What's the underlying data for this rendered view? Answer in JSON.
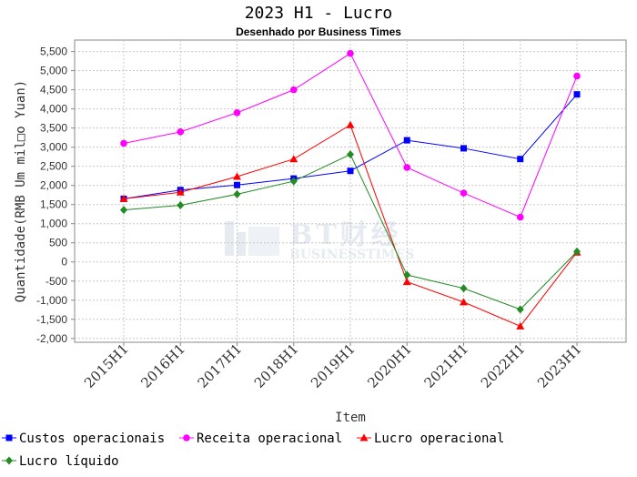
{
  "title": "2023 H1 - Lucro",
  "subtitle": "Desenhado por Business Times",
  "watermark": {
    "main": "BT财经",
    "sub": "BUSINESSTIMES"
  },
  "chart_data": {
    "type": "line",
    "xlabel": "Item",
    "ylabel": "Quantidade(RMB Um mil□o Yuan)",
    "categories": [
      "2015H1",
      "2016H1",
      "2017H1",
      "2018H1",
      "2019H1",
      "2020H1",
      "2021H1",
      "2022H1",
      "2023H1"
    ],
    "ylim": [
      -2000,
      5500
    ],
    "yticks": [
      -2000,
      -1500,
      -1000,
      -500,
      0,
      500,
      1000,
      1500,
      2000,
      2500,
      3000,
      3500,
      4000,
      4500,
      5000,
      5500
    ],
    "ytick_labels": [
      "-2,000",
      "-1,500",
      "-1,000",
      "-500",
      "0",
      "500",
      "1,000",
      "1,500",
      "2,000",
      "2,500",
      "3,000",
      "3,500",
      "4,000",
      "4,500",
      "5,000",
      "5,500"
    ],
    "grid": true,
    "legend_position": "bottom",
    "series": [
      {
        "name": "Custos operacionais",
        "color": "#0000ff",
        "marker": "square",
        "values": [
          1650,
          1880,
          2010,
          2180,
          2380,
          3180,
          2970,
          2690,
          4380
        ]
      },
      {
        "name": "Receita operacional",
        "color": "#ff00ff",
        "marker": "circle",
        "values": [
          3100,
          3400,
          3900,
          4500,
          5450,
          2470,
          1800,
          1170,
          4860
        ]
      },
      {
        "name": "Lucro operacional",
        "color": "#ff0000",
        "marker": "triangle",
        "values": [
          1650,
          1820,
          2230,
          2690,
          3580,
          -520,
          -1050,
          -1680,
          250
        ]
      },
      {
        "name": "Lucro líquido",
        "color": "#228b22",
        "marker": "diamond",
        "values": [
          1360,
          1480,
          1770,
          2110,
          2810,
          -340,
          -690,
          -1240,
          270
        ]
      }
    ]
  }
}
